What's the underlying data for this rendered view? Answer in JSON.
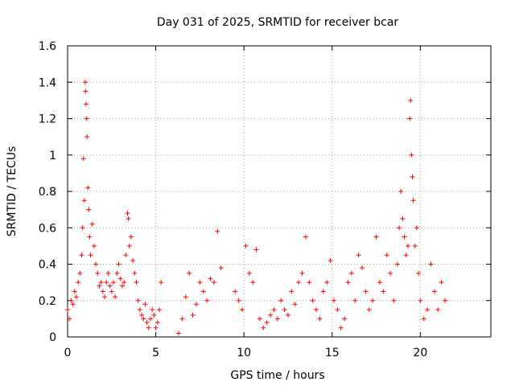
{
  "chart_data": {
    "type": "scatter",
    "title": "Day 031 of 2025, SRMTID for receiver bcar",
    "xlabel": "GPS time / hours",
    "ylabel": "SRMTID / TECUs",
    "xlim": [
      0,
      24
    ],
    "ylim": [
      0,
      1.6
    ],
    "xticks": [
      0,
      5,
      10,
      15,
      20
    ],
    "xtick_labels": [
      "0",
      "5",
      "10",
      "15",
      "20"
    ],
    "yticks": [
      0,
      0.2,
      0.4,
      0.6,
      0.8,
      1.0,
      1.2,
      1.4,
      1.6
    ],
    "ytick_labels": [
      "0",
      "0.2",
      "0.4",
      "0.6",
      "0.8",
      "1",
      "1.2",
      "1.4",
      "1.6"
    ],
    "grid": true,
    "marker": "+",
    "series": [
      {
        "name": "SRMTID",
        "color": "#ff0000",
        "x": [
          0.0,
          0.1,
          0.2,
          0.3,
          0.4,
          0.5,
          0.6,
          0.7,
          0.8,
          0.85,
          0.9,
          0.95,
          1.0,
          1.02,
          1.05,
          1.08,
          1.1,
          1.15,
          1.2,
          1.25,
          1.3,
          1.4,
          1.5,
          1.6,
          1.7,
          1.8,
          1.9,
          2.0,
          2.1,
          2.2,
          2.3,
          2.4,
          2.5,
          2.6,
          2.7,
          2.8,
          2.9,
          3.0,
          3.1,
          3.2,
          3.3,
          3.4,
          3.45,
          3.5,
          3.6,
          3.7,
          3.8,
          3.9,
          4.0,
          4.1,
          4.2,
          4.3,
          4.4,
          4.5,
          4.6,
          4.7,
          4.8,
          4.9,
          5.0,
          5.1,
          5.2,
          5.3,
          6.3,
          6.5,
          6.7,
          6.9,
          7.1,
          7.3,
          7.5,
          7.7,
          7.9,
          8.1,
          8.3,
          8.5,
          8.7,
          9.5,
          9.7,
          9.9,
          10.1,
          10.3,
          10.5,
          10.7,
          10.9,
          11.1,
          11.3,
          11.5,
          11.7,
          11.9,
          12.1,
          12.3,
          12.5,
          12.7,
          12.9,
          13.1,
          13.3,
          13.5,
          13.7,
          13.9,
          14.1,
          14.3,
          14.5,
          14.7,
          14.9,
          15.1,
          15.3,
          15.5,
          15.7,
          15.9,
          16.1,
          16.3,
          16.5,
          16.7,
          16.9,
          17.1,
          17.3,
          17.5,
          17.7,
          17.9,
          18.1,
          18.3,
          18.5,
          18.7,
          18.8,
          18.9,
          19.0,
          19.1,
          19.2,
          19.3,
          19.4,
          19.45,
          19.5,
          19.55,
          19.6,
          19.7,
          19.8,
          19.9,
          20.0,
          20.2,
          20.4,
          20.6,
          20.8,
          21.0,
          21.2,
          21.4
        ],
        "values": [
          0.15,
          0.1,
          0.2,
          0.18,
          0.25,
          0.22,
          0.3,
          0.35,
          0.45,
          0.6,
          0.98,
          0.75,
          1.4,
          1.35,
          1.28,
          1.2,
          1.1,
          0.82,
          0.7,
          0.55,
          0.45,
          0.62,
          0.5,
          0.4,
          0.35,
          0.28,
          0.3,
          0.25,
          0.22,
          0.3,
          0.35,
          0.28,
          0.25,
          0.3,
          0.22,
          0.35,
          0.4,
          0.32,
          0.28,
          0.3,
          0.45,
          0.68,
          0.65,
          0.5,
          0.55,
          0.42,
          0.35,
          0.3,
          0.2,
          0.15,
          0.12,
          0.1,
          0.18,
          0.08,
          0.05,
          0.1,
          0.15,
          0.12,
          0.05,
          0.08,
          0.15,
          0.3,
          0.02,
          0.1,
          0.22,
          0.35,
          0.12,
          0.18,
          0.3,
          0.25,
          0.2,
          0.32,
          0.3,
          0.58,
          0.38,
          0.25,
          0.2,
          0.15,
          0.5,
          0.35,
          0.3,
          0.48,
          0.1,
          0.05,
          0.08,
          0.12,
          0.15,
          0.1,
          0.2,
          0.15,
          0.12,
          0.25,
          0.18,
          0.3,
          0.35,
          0.55,
          0.3,
          0.2,
          0.15,
          0.1,
          0.25,
          0.3,
          0.42,
          0.2,
          0.15,
          0.05,
          0.1,
          0.3,
          0.35,
          0.2,
          0.45,
          0.38,
          0.25,
          0.15,
          0.2,
          0.55,
          0.3,
          0.25,
          0.45,
          0.35,
          0.2,
          0.4,
          0.6,
          0.8,
          0.65,
          0.55,
          0.45,
          0.5,
          1.2,
          1.3,
          1.0,
          0.88,
          0.75,
          0.5,
          0.6,
          0.35,
          0.2,
          0.1,
          0.15,
          0.4,
          0.25,
          0.15,
          0.3,
          0.2
        ]
      }
    ]
  }
}
